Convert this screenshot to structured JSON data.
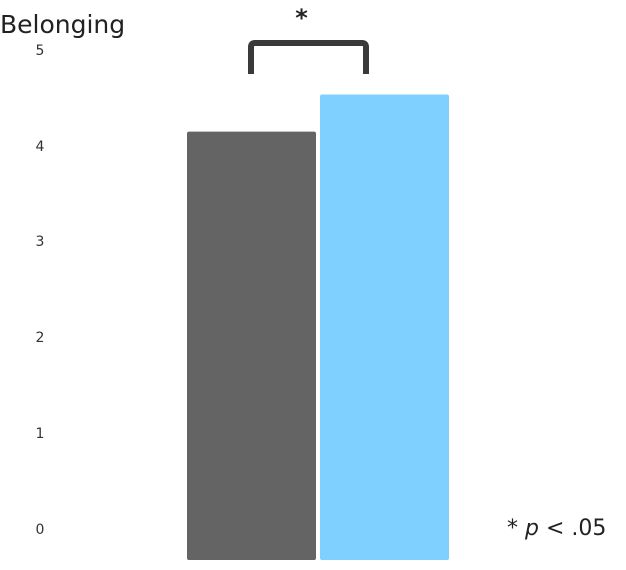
{
  "chart_data": {
    "type": "bar",
    "title": "Belonging",
    "xlabel": "",
    "ylabel": "",
    "ylim": [
      0,
      5
    ],
    "yticks": [
      "0",
      "1",
      "2",
      "3",
      "4",
      "5"
    ],
    "grid": false,
    "legend": "none",
    "categories": [
      "",
      ""
    ],
    "values": [
      4.49,
      4.88
    ],
    "colors": [
      "#646464",
      "#80d0ff"
    ],
    "significance": {
      "marker": "*",
      "note_prefix": "*",
      "note_symbol": "p",
      "note_suffix": "< .05"
    }
  }
}
